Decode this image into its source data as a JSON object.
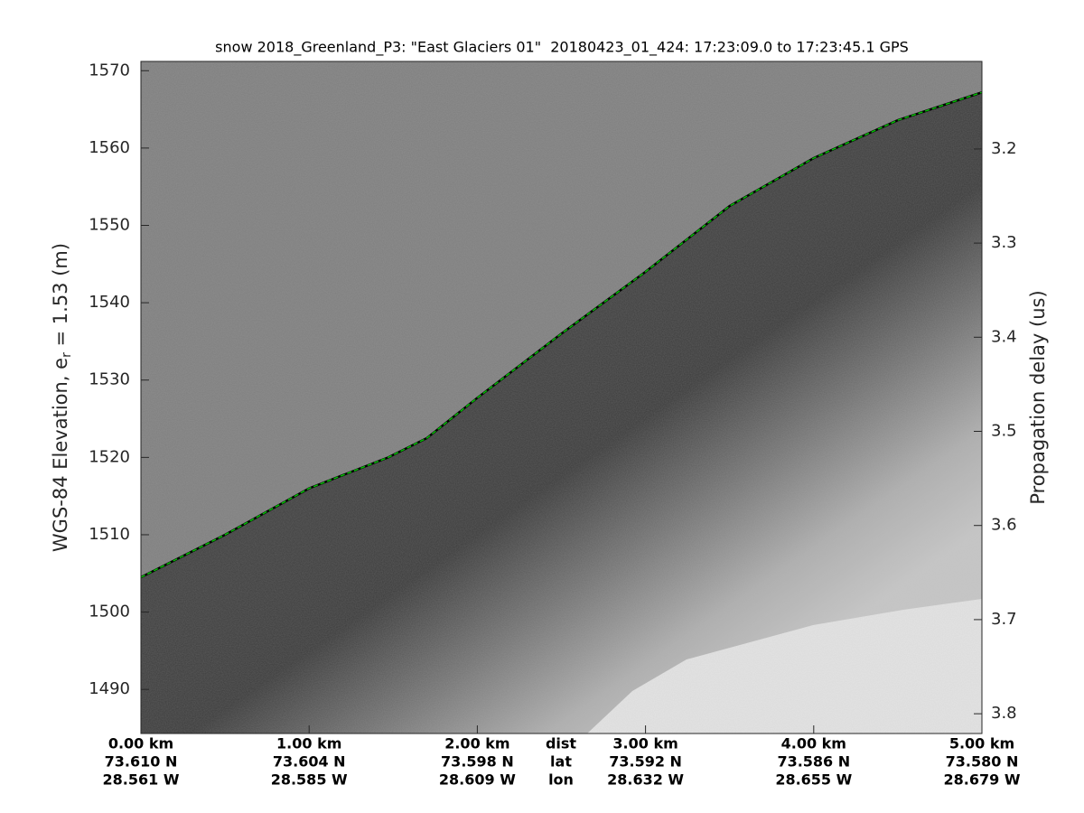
{
  "chart_data": {
    "type": "line",
    "title": "snow 2018_Greenland_P3: \"East Glaciers 01\"  20180423_01_424: 17:23:09.0 to 17:23:45.1 GPS",
    "ylabel": [
      "WGS-84 Elevation, e",
      "r",
      " = 1.53 (m)"
    ],
    "y2label": "Propagation delay (us)",
    "xlim": [
      0,
      5
    ],
    "xticks": [
      {
        "value": 0,
        "label": "0.00 km"
      },
      {
        "value": 1,
        "label": "1.00 km"
      },
      {
        "value": 2,
        "label": "2.00 km"
      },
      {
        "value": 3,
        "label": "3.00 km"
      },
      {
        "value": 4,
        "label": "4.00 km"
      },
      {
        "value": 5,
        "label": "5.00 km"
      }
    ],
    "xtick_lat": [
      "73.610 N",
      "73.604 N",
      "73.598 N",
      "73.592 N",
      "73.586 N",
      "73.580 N"
    ],
    "xtick_lon": [
      "28.561 W",
      "28.585 W",
      "28.609 W",
      "28.632 W",
      "28.655 W",
      "28.679 W"
    ],
    "xtick_rows": [
      "dist",
      "lat",
      "lon"
    ],
    "ylim": [
      1484.3,
      1571.2
    ],
    "yticks": [
      1490,
      1500,
      1510,
      1520,
      1530,
      1540,
      1550,
      1560,
      1570
    ],
    "y2lim": [
      3.107,
      3.821
    ],
    "y2ticks": [
      3.2,
      3.3,
      3.4,
      3.5,
      3.6,
      3.7,
      3.8
    ],
    "series": [
      {
        "color": "#00c000",
        "x": [
          0,
          0.5,
          1.0,
          1.47,
          1.7,
          2.0,
          2.5,
          3.0,
          3.5,
          4.0,
          4.5,
          5.0
        ],
        "values": [
          1504.5,
          1510,
          1516,
          1520,
          1522.5,
          1527.7,
          1536,
          1544,
          1552.5,
          1558.7,
          1563.6,
          1567.2
        ]
      }
    ]
  }
}
